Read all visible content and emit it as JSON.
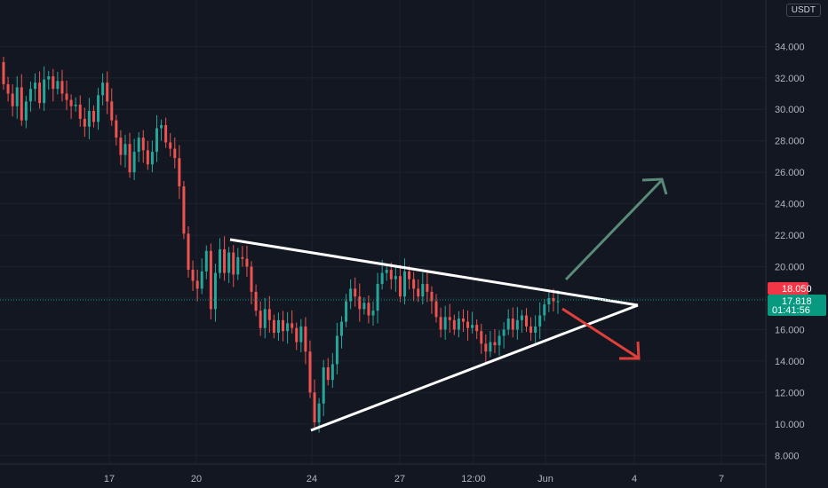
{
  "currency_label": "USDT",
  "colors": {
    "background": "#131722",
    "up": "#26a69a",
    "down": "#ef5350",
    "grid": "#1e222d",
    "pattern_line": "#ffffff",
    "bull_arrow": "#5a8a78",
    "bear_arrow": "#e0403a",
    "price_badge": "#f23645",
    "current_badge": "#089981"
  },
  "price_badges": {
    "last_price": "18.050",
    "current_price": "17.818",
    "countdown": "01:41:56"
  },
  "chart_data": {
    "type": "candlestick",
    "title": "",
    "xlabel": "",
    "ylabel": "",
    "ylim": [
      7.0,
      36.5
    ],
    "y_ticks": [
      "8.000",
      "10.000",
      "12.000",
      "14.000",
      "16.000",
      "18.000",
      "20.000",
      "22.000",
      "24.000",
      "26.000",
      "28.000",
      "30.000",
      "32.000",
      "34.000"
    ],
    "x_ticks": [
      "17",
      "20",
      "24",
      "27",
      "12:00",
      "Jun",
      "4",
      "7"
    ],
    "grid": true,
    "candles_close": [
      31.6,
      31.0,
      30.2,
      31.4,
      29.3,
      30.5,
      31.3,
      31.7,
      30.4,
      31.9,
      32.1,
      31.3,
      31.8,
      31.0,
      30.6,
      30.2,
      30.3,
      29.4,
      28.9,
      29.9,
      29.2,
      30.9,
      31.7,
      30.5,
      29.3,
      28.2,
      27.1,
      27.8,
      26.0,
      27.3,
      28.2,
      27.4,
      26.5,
      27.3,
      28.8,
      29.0,
      27.9,
      27.5,
      26.9,
      25.1,
      22.1,
      19.8,
      19.1,
      18.6,
      19.7,
      21.0,
      17.3,
      19.6,
      21.1,
      19.6,
      20.9,
      19.5,
      20.6,
      20.5,
      20.0,
      18.4,
      17.2,
      16.1,
      17.3,
      16.6,
      15.8,
      16.6,
      15.9,
      16.4,
      16.1,
      15.2,
      16.2,
      14.6,
      12.0,
      10.1,
      11.3,
      13.6,
      12.8,
      13.8,
      15.6,
      16.5,
      17.8,
      18.6,
      18.1,
      17.3,
      17.7,
      16.9,
      17.2,
      18.9,
      19.6,
      19.8,
      19.2,
      19.4,
      18.1,
      19.7,
      19.2,
      18.6,
      18.1,
      18.9,
      18.4,
      17.8,
      16.8,
      16.0,
      16.8,
      16.6,
      16.0,
      16.7,
      16.5,
      16.1,
      16.3,
      15.9,
      15.1,
      14.6,
      15.2,
      15.0,
      15.6,
      16.0,
      16.7,
      16.0,
      16.6,
      16.9,
      16.2,
      15.8,
      16.2,
      16.9,
      17.6,
      18.0,
      17.8,
      17.8
    ],
    "patterns": [
      {
        "type": "descending_resistance",
        "from": {
          "x": "May 21",
          "y": 21.6
        },
        "to": {
          "x": "Jun 4",
          "y": 17.3
        }
      },
      {
        "type": "ascending_support",
        "from": {
          "x": "May 24",
          "y": 9.6
        },
        "to": {
          "x": "Jun 4",
          "y": 17.3
        }
      }
    ],
    "projections": [
      {
        "direction": "up",
        "color": "green",
        "target": 25.5
      },
      {
        "direction": "down",
        "color": "red",
        "target": 14.1
      }
    ]
  }
}
